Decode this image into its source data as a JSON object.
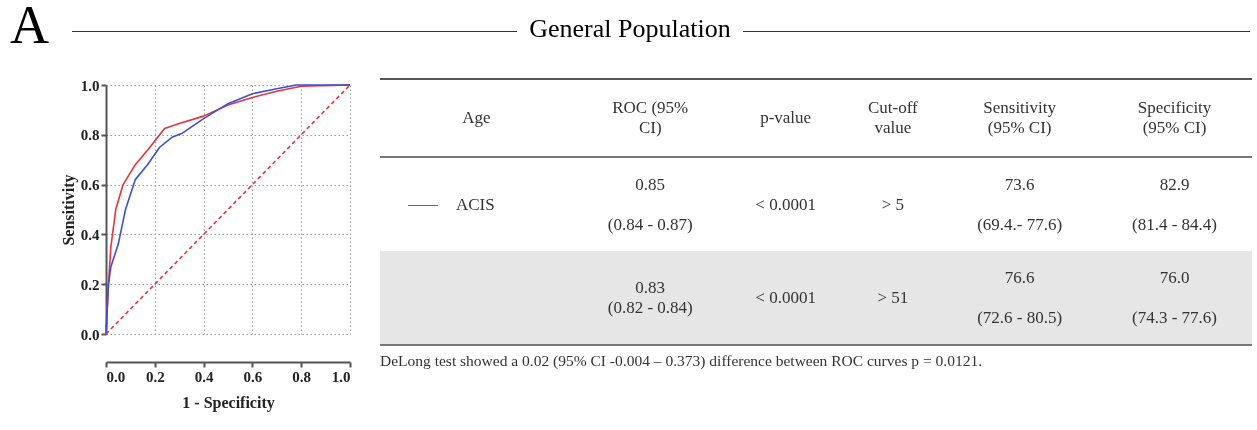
{
  "chart_data": [
    {
      "type": "line",
      "xlabel": "1 - Specificity",
      "ylabel": "Sensitivity",
      "annotations": [
        "A"
      ],
      "xlim": [
        0,
        1
      ],
      "ylim": [
        0,
        1
      ],
      "xticks": [
        {
          "value": 0,
          "label": "0.0"
        },
        {
          "value": 0.2,
          "label": "0.2"
        },
        {
          "value": 0.4,
          "label": "0.4"
        },
        {
          "value": 0.6,
          "label": "0.6"
        },
        {
          "value": 0.8,
          "label": "0.8"
        },
        {
          "value": 1,
          "label": "1.0"
        }
      ],
      "yticks": [
        {
          "value": 0,
          "label": "0.0"
        },
        {
          "value": 0.2,
          "label": "0.2"
        },
        {
          "value": 0.4,
          "label": "0.4"
        },
        {
          "value": 0.6,
          "label": "0.6"
        },
        {
          "value": 0.8,
          "label": "0.8"
        },
        {
          "value": 1,
          "label": "1.0"
        }
      ],
      "grid": true,
      "series": [
        {
          "name": "ACIS",
          "color": "#e8323c",
          "x": [
            0,
            0.01,
            0.02,
            0.04,
            0.07,
            0.12,
            0.18,
            0.24,
            0.3,
            0.4,
            0.5,
            0.6,
            0.7,
            0.8,
            1
          ],
          "values": [
            0,
            0.2,
            0.35,
            0.5,
            0.6,
            0.68,
            0.75,
            0.825,
            0.845,
            0.875,
            0.92,
            0.95,
            0.975,
            0.995,
            1
          ]
        },
        {
          "color": "#3a4fe0",
          "x": [
            0,
            0.01,
            0.02,
            0.05,
            0.08,
            0.12,
            0.17,
            0.22,
            0.27,
            0.31,
            0.4,
            0.5,
            0.6,
            0.7,
            0.78,
            1
          ],
          "values": [
            0,
            0.2,
            0.27,
            0.36,
            0.5,
            0.62,
            0.68,
            0.75,
            0.79,
            0.805,
            0.865,
            0.925,
            0.965,
            0.985,
            1,
            1
          ]
        },
        {
          "color": "#e8323c",
          "line_style": "dashed",
          "x": [
            0,
            1
          ],
          "values": [
            0,
            1
          ]
        }
      ]
    },
    {
      "type": "other",
      "title": "General Population",
      "annotations": [
        "Age",
        "ROC (95%\nCI)",
        "p-value",
        "Cut-off\nvalue",
        "Sensitivity\n(95% CI)",
        "Specificity\n(95% CI)",
        "0.85\n\n(0.84 - 0.87)",
        "< 0.0001",
        "> 5",
        "73.6\n\n(69.4.- 77.6)",
        "82.9\n\n(81.4 - 84.4)",
        "0.83\n(0.82 - 0.84)",
        "< 0.0001",
        "> 51",
        "76.6\n\n(72.6 - 80.5)",
        "76.0\n\n(74.3 - 77.6)",
        "DeLong test showed a 0.02 (95% CI -0.004 – 0.373) difference between ROC curves p = 0.0121."
      ]
    }
  ]
}
